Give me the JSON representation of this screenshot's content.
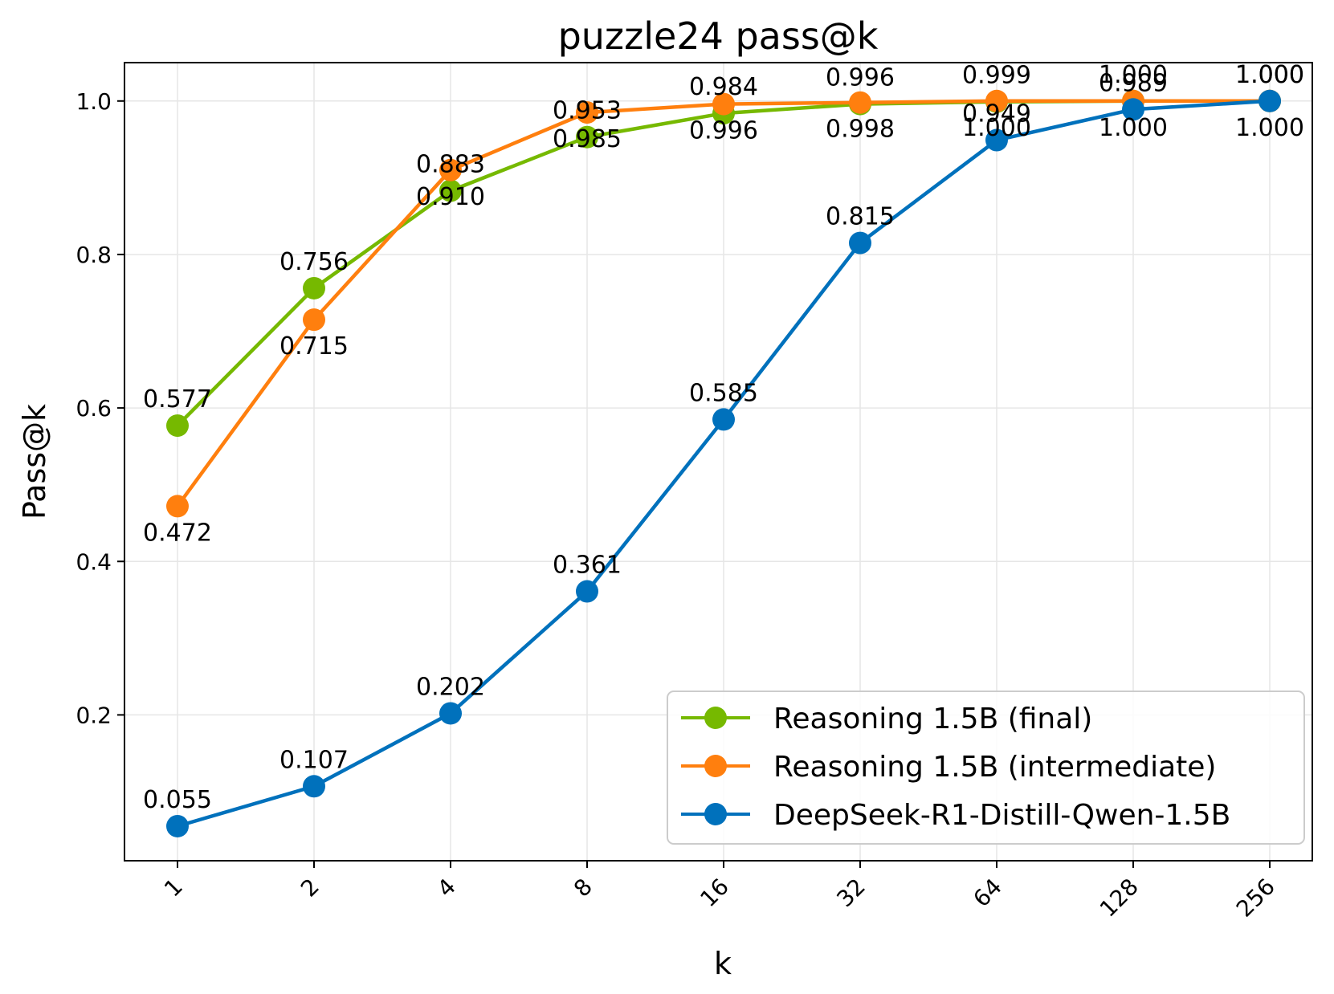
{
  "chart_data": {
    "type": "line",
    "title": "puzzle24 pass@k",
    "xlabel": "k",
    "ylabel": "Pass@k",
    "categories": [
      "1",
      "2",
      "4",
      "8",
      "16",
      "32",
      "64",
      "128",
      "256"
    ],
    "ylim": [
      0.01,
      1.05
    ],
    "yticks": [
      "0.2",
      "0.4",
      "0.6",
      "0.8",
      "1.0"
    ],
    "ytick_values": [
      0.2,
      0.4,
      0.6,
      0.8,
      1.0
    ],
    "grid": true,
    "legend_position": "lower-right",
    "series": [
      {
        "name": "Reasoning 1.5B (final)",
        "color": "#76b900",
        "values": [
          0.577,
          0.756,
          0.883,
          0.953,
          0.984,
          0.996,
          0.999,
          1.0,
          1.0
        ],
        "labels": [
          "0.577",
          "0.756",
          "0.883",
          "0.953",
          "0.984",
          "0.996",
          "0.999",
          "1.000",
          "1.000"
        ],
        "label_positions": [
          "above",
          "above",
          "above",
          "above",
          "above",
          "above",
          "above",
          "above",
          "above"
        ]
      },
      {
        "name": "Reasoning 1.5B (intermediate)",
        "color": "#ff7f0e",
        "values": [
          0.472,
          0.715,
          0.91,
          0.985,
          0.996,
          0.998,
          1.0,
          1.0,
          1.0
        ],
        "labels": [
          "0.472",
          "0.715",
          "0.910",
          "0.985",
          "0.996",
          "0.998",
          "1.000",
          "1.000",
          "1.000"
        ],
        "label_positions": [
          "below",
          "below",
          "below",
          "below",
          "below",
          "below",
          "below",
          "below",
          "below"
        ]
      },
      {
        "name": "DeepSeek-R1-Distill-Qwen-1.5B",
        "color": "#0071bc",
        "values": [
          0.055,
          0.107,
          0.202,
          0.361,
          0.585,
          0.815,
          0.949,
          0.989,
          1.0
        ],
        "labels": [
          "0.055",
          "0.107",
          "0.202",
          "0.361",
          "0.585",
          "0.815",
          "0.949",
          "0.989",
          "1.000"
        ],
        "label_positions": [
          "above",
          "above",
          "above",
          "above",
          "above",
          "above",
          "above",
          "above",
          "above"
        ]
      }
    ]
  }
}
